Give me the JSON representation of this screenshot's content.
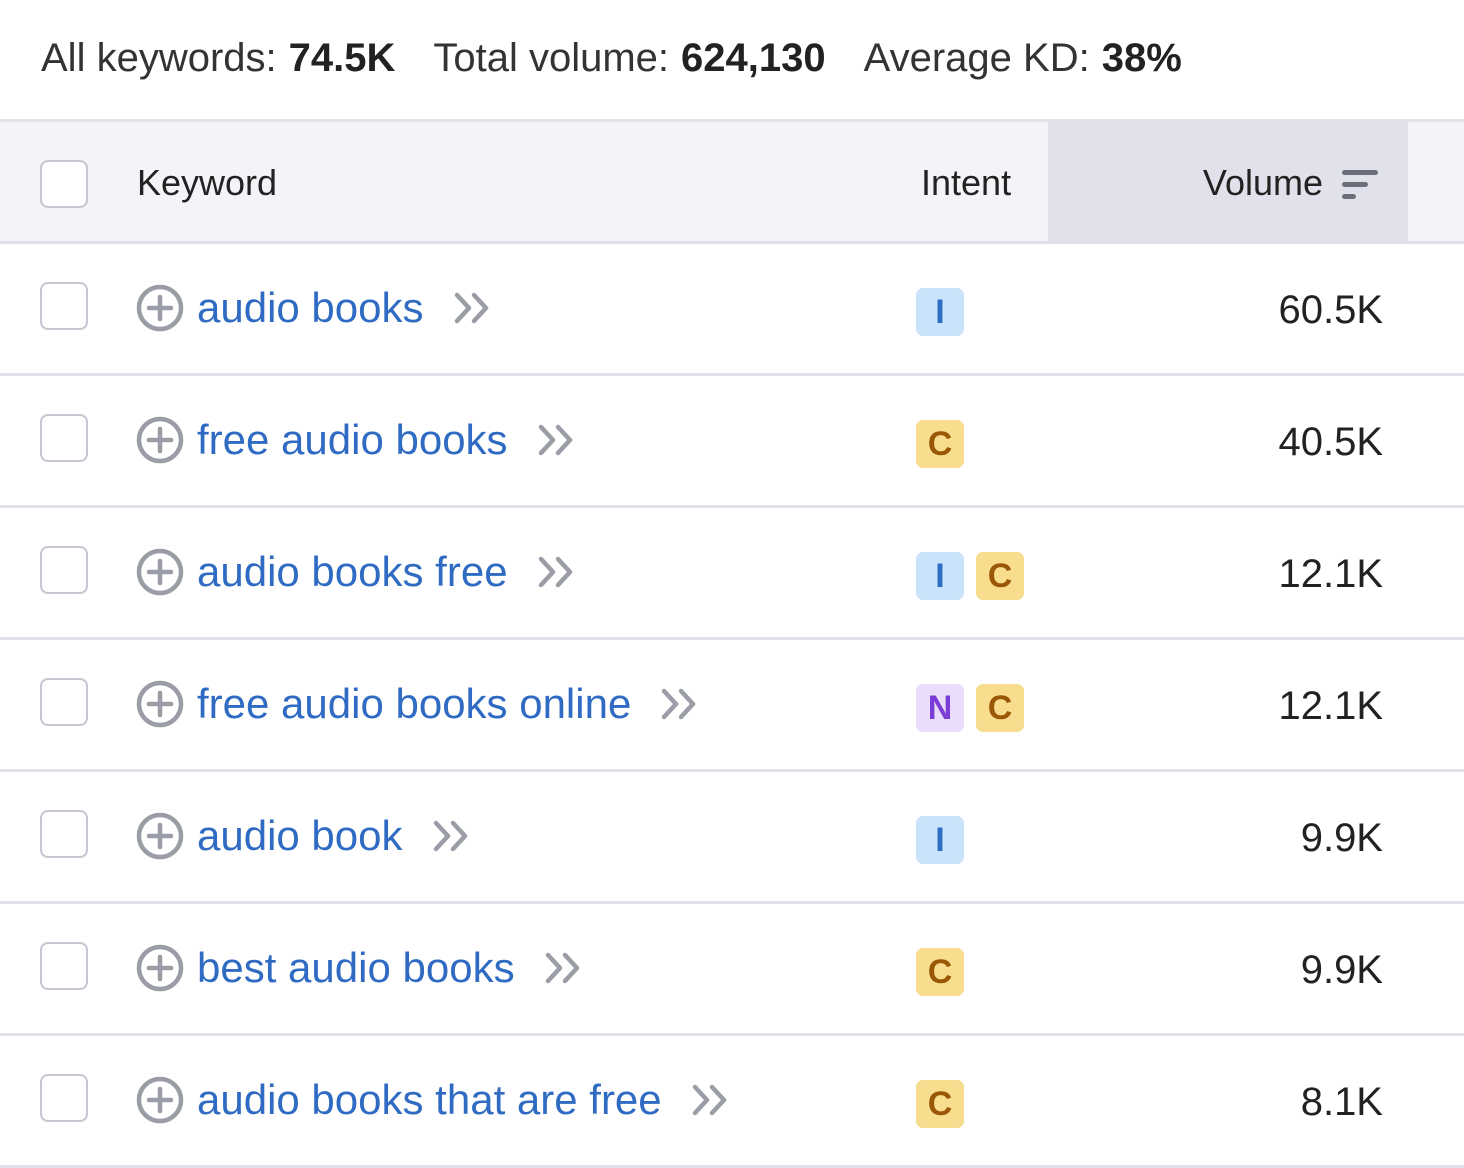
{
  "summary": [
    {
      "label": "All keywords:",
      "value": "74.5K"
    },
    {
      "label": "Total volume:",
      "value": "624,130"
    },
    {
      "label": "Average KD:",
      "value": "38%"
    }
  ],
  "table": {
    "headers": [
      "Keyword",
      "Intent",
      "Volume"
    ],
    "rows": [
      {
        "keyword": "audio books",
        "intents": [
          "I"
        ],
        "volume": "60.5K"
      },
      {
        "keyword": "free audio books",
        "intents": [
          "C"
        ],
        "volume": "40.5K"
      },
      {
        "keyword": "audio books free",
        "intents": [
          "I",
          "C"
        ],
        "volume": "12.1K"
      },
      {
        "keyword": "free audio books online",
        "intents": [
          "N",
          "C"
        ],
        "volume": "12.1K"
      },
      {
        "keyword": "audio book",
        "intents": [
          "I"
        ],
        "volume": "9.9K"
      },
      {
        "keyword": "best audio books",
        "intents": [
          "C"
        ],
        "volume": "9.9K"
      },
      {
        "keyword": "audio books that are free",
        "intents": [
          "C"
        ],
        "volume": "8.1K"
      }
    ]
  }
}
